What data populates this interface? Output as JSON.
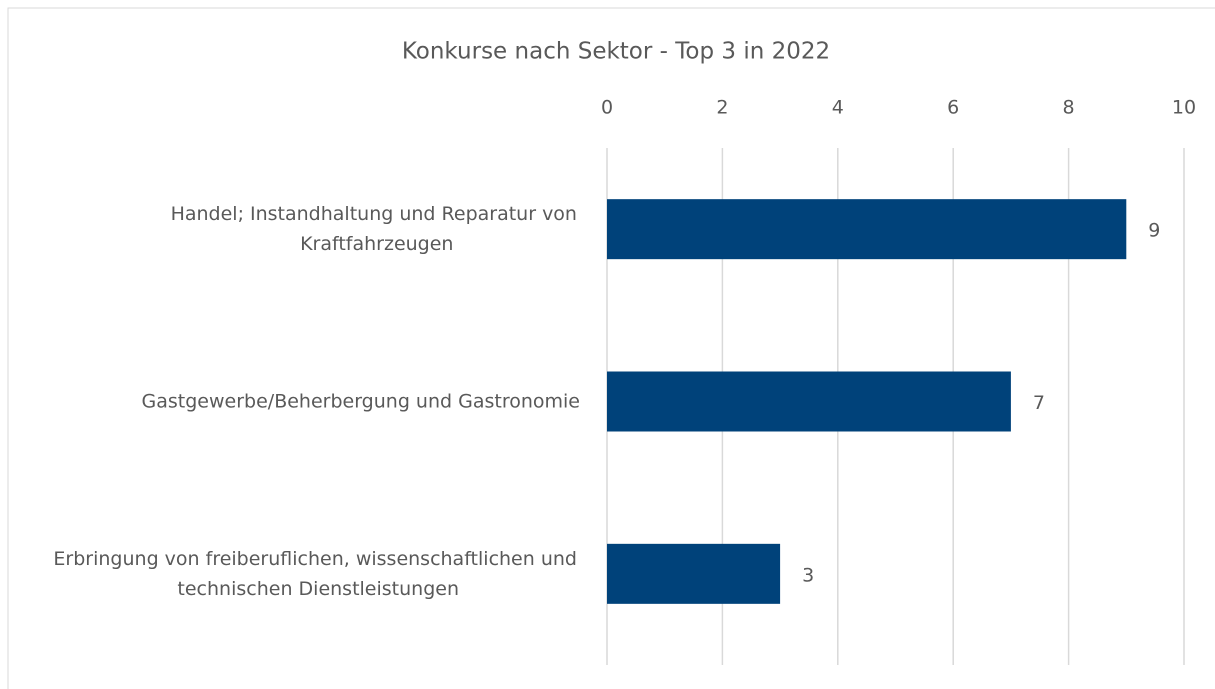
{
  "chart_data": {
    "type": "bar",
    "orientation": "horizontal",
    "title": "Konkurse nach Sektor - Top 3 in 2022",
    "categories": [
      "Handel; Instandhaltung und Reparatur von Kraftfahrzeugen",
      "Gastgewerbe/Beherbergung und Gastronomie",
      "Erbringung von freiberuflichen, wissenschaftlichen und technischen Dienstleistungen"
    ],
    "values": [
      9,
      7,
      3
    ],
    "color": "#00427a",
    "xlim": [
      0,
      10
    ],
    "xticks": [
      0,
      2,
      4,
      6,
      8,
      10
    ],
    "grid": true,
    "data_labels": true
  }
}
